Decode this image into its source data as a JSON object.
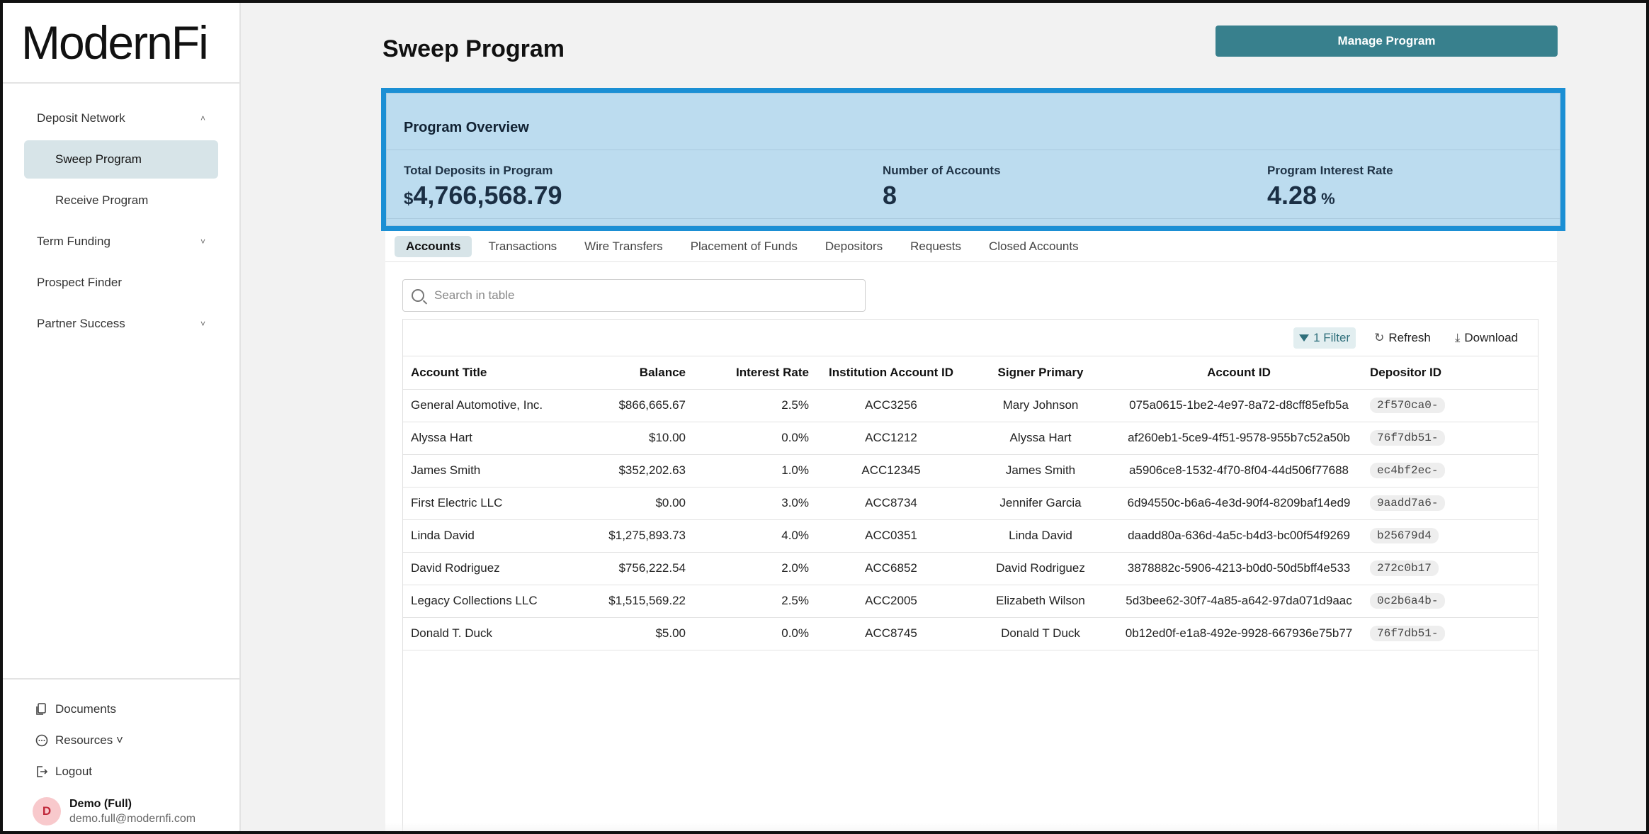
{
  "sidebar": {
    "logo": "ModernFi",
    "items": [
      {
        "label": "Deposit Network",
        "chevron": "˄"
      },
      {
        "label": "Sweep Program"
      },
      {
        "label": "Receive Program"
      },
      {
        "label": "Term Funding",
        "chevron": "˅"
      },
      {
        "label": "Prospect Finder"
      },
      {
        "label": "Partner Success",
        "chevron": "˅"
      }
    ],
    "bottom": [
      {
        "label": "Documents",
        "icon": "documents-icon"
      },
      {
        "label": "Resources ˅",
        "icon": "resources-icon"
      },
      {
        "label": "Logout",
        "icon": "logout-icon"
      }
    ],
    "user": {
      "initial": "D",
      "name": "Demo (Full)",
      "email": "demo.full@modernfi.com"
    }
  },
  "header": {
    "title": "Sweep Program",
    "manage_button": "Manage Program"
  },
  "overview": {
    "title": "Program Overview",
    "stats": [
      {
        "label": "Total Deposits in Program",
        "prefix": "$",
        "value": "4,766,568.79"
      },
      {
        "label": "Number of Accounts",
        "value": "8"
      },
      {
        "label": "Program Interest Rate",
        "value": "4.28",
        "suffix": "%"
      }
    ]
  },
  "tabs": [
    "Accounts",
    "Transactions",
    "Wire Transfers",
    "Placement of Funds",
    "Depositors",
    "Requests",
    "Closed Accounts"
  ],
  "search": {
    "placeholder": "Search in table"
  },
  "toolbar": {
    "filter": "1 Filter",
    "refresh": "Refresh",
    "download": "Download"
  },
  "table": {
    "columns": [
      "Account Title",
      "Balance",
      "Interest Rate",
      "Institution Account ID",
      "Signer Primary",
      "Account ID",
      "Depositor ID"
    ],
    "rows": [
      [
        "General Automotive, Inc.",
        "$866,665.67",
        "2.5%",
        "ACC3256",
        "Mary Johnson",
        "075a0615-1be2-4e97-8a72-d8cff85efb5a",
        "2f570ca0-"
      ],
      [
        "Alyssa Hart",
        "$10.00",
        "0.0%",
        "ACC1212",
        "Alyssa Hart",
        "af260eb1-5ce9-4f51-9578-955b7c52a50b",
        "76f7db51-"
      ],
      [
        "James Smith",
        "$352,202.63",
        "1.0%",
        "ACC12345",
        "James Smith",
        "a5906ce8-1532-4f70-8f04-44d506f77688",
        "ec4bf2ec-"
      ],
      [
        "First Electric LLC",
        "$0.00",
        "3.0%",
        "ACC8734",
        "Jennifer Garcia",
        "6d94550c-b6a6-4e3d-90f4-8209baf14ed9",
        "9aadd7a6-"
      ],
      [
        "Linda David",
        "$1,275,893.73",
        "4.0%",
        "ACC0351",
        "Linda David",
        "daadd80a-636d-4a5c-b4d3-bc00f54f9269",
        "b25679d4"
      ],
      [
        "David Rodriguez",
        "$756,222.54",
        "2.0%",
        "ACC6852",
        "David Rodriguez",
        "3878882c-5906-4213-b0d0-50d5bff4e533",
        "272c0b17"
      ],
      [
        "Legacy Collections LLC",
        "$1,515,569.22",
        "2.5%",
        "ACC2005",
        "Elizabeth Wilson",
        "5d3bee62-30f7-4a85-a642-97da071d9aac",
        "0c2b6a4b-"
      ],
      [
        "Donald T. Duck",
        "$5.00",
        "0.0%",
        "ACC8745",
        "Donald T Duck",
        "0b12ed0f-e1a8-492e-9928-667936e75b77",
        "76f7db51-"
      ]
    ]
  },
  "colors": {
    "accent": "#38808d",
    "highlight_border": "#1b8fd4",
    "highlight_fill": "#bcdcef",
    "active_nav": "#d7e4e8"
  }
}
